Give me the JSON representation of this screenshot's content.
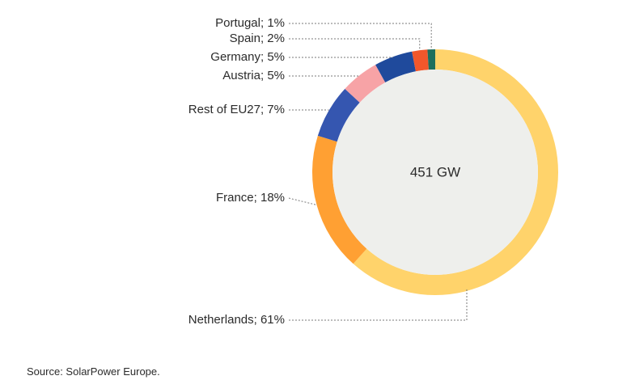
{
  "chart_data": {
    "type": "pie",
    "style": "donut",
    "center_label": "451 GW",
    "start": "top, clockwise",
    "slices": [
      {
        "label": "Netherlands; 61%",
        "value": 61,
        "color": "#FFD36B"
      },
      {
        "label": "France; 18%",
        "value": 18,
        "color": "#FFA033"
      },
      {
        "label": "Rest of EU27; 7%",
        "value": 7,
        "color": "#3556B0"
      },
      {
        "label": "Austria; 5%",
        "value": 5,
        "color": "#F7A3A6"
      },
      {
        "label": "Germany; 5%",
        "value": 5,
        "color": "#1F4A9C"
      },
      {
        "label": "Spain; 2%",
        "value": 2,
        "color": "#F2572B"
      },
      {
        "label": "Portugal; 1%",
        "value": 1,
        "color": "#1E6F5C"
      }
    ],
    "inner_fill": "#EEEFEC"
  },
  "source": "Source: SolarPower Europe."
}
